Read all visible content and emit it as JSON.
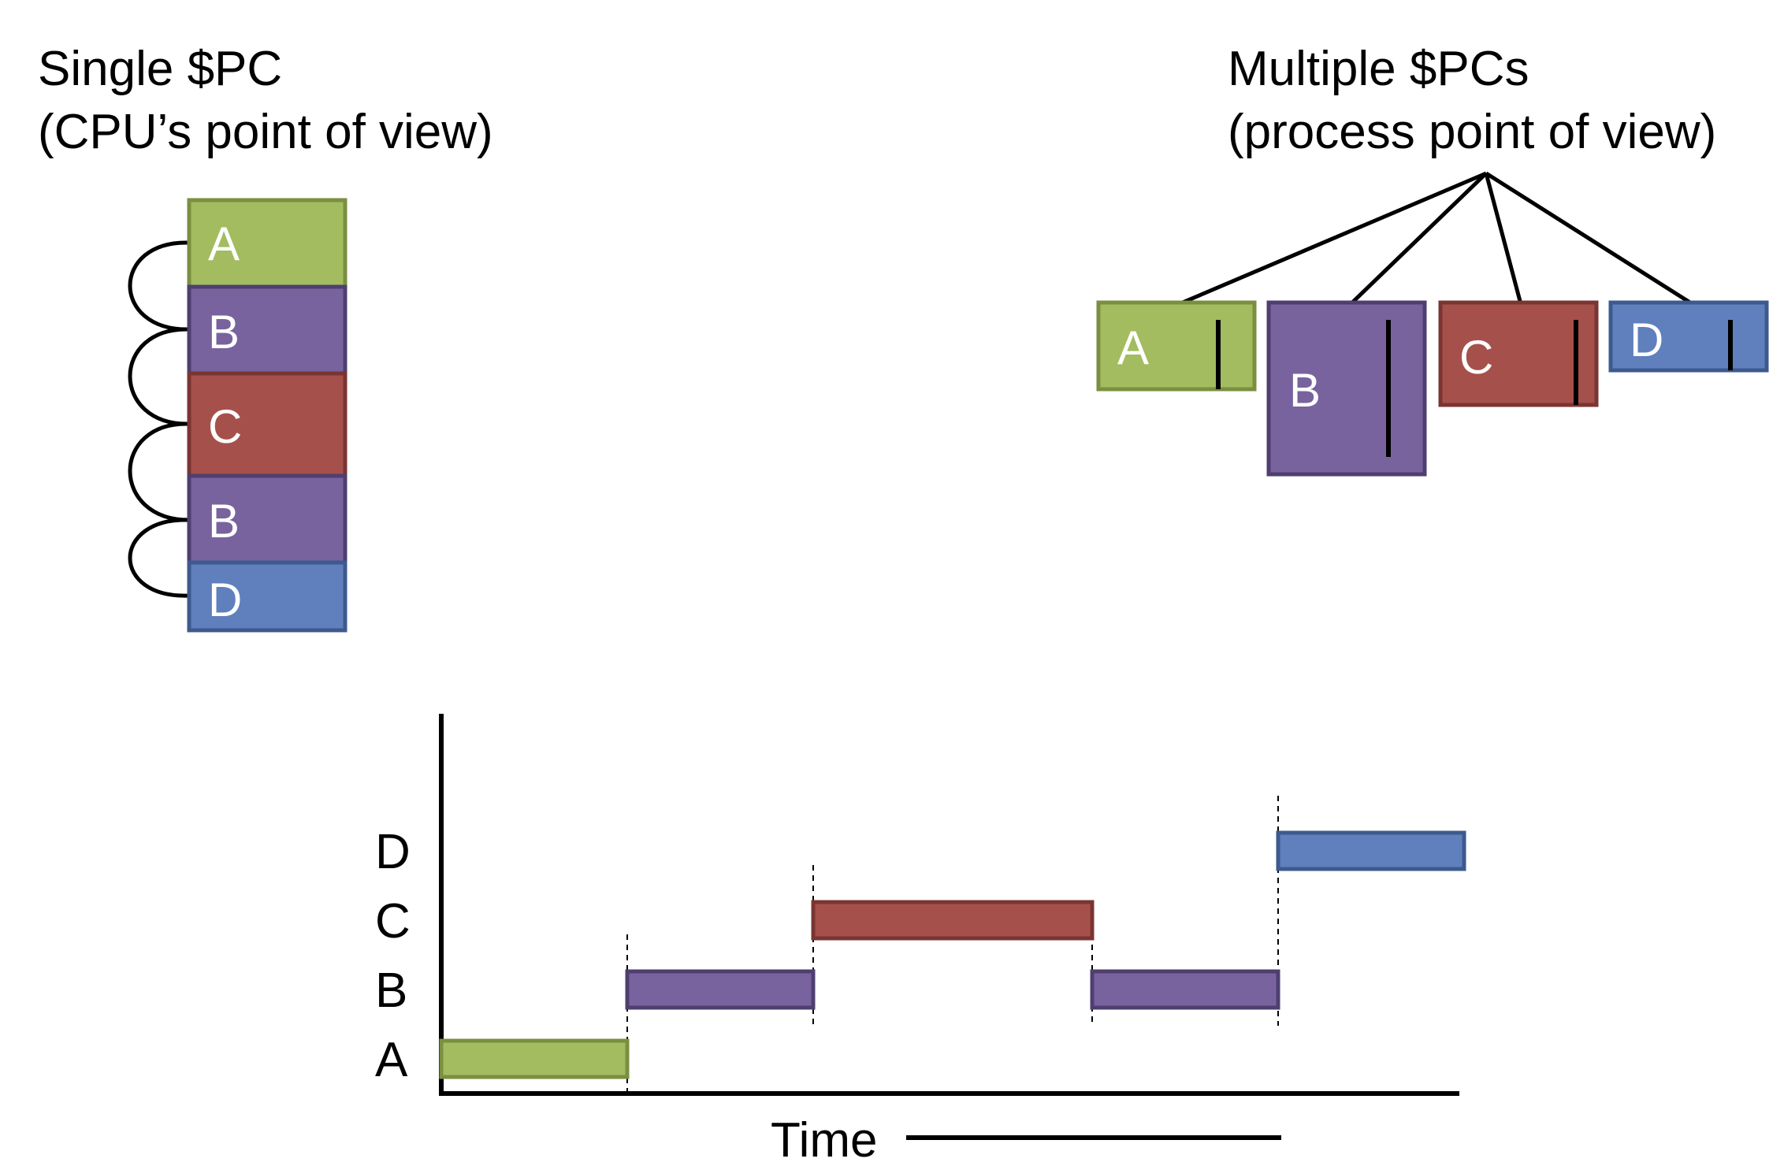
{
  "left_title": {
    "line1": "Single $PC",
    "line2": "(CPU’s point of view)"
  },
  "right_title": {
    "line1": "Multiple $PCs",
    "line2": "(process point of view)"
  },
  "colors": {
    "A": "#a3bc60",
    "B": "#78639e",
    "C": "#a6504c",
    "D": "#5f80bc",
    "A_stroke": "#7a8f3f",
    "B_stroke": "#4e3f70",
    "C_stroke": "#7a3532",
    "D_stroke": "#3d5a8e"
  },
  "cpu_stack": [
    "A",
    "B",
    "C",
    "B",
    "D"
  ],
  "process_boxes": [
    "A",
    "B",
    "C",
    "D"
  ],
  "timeline": {
    "rows": [
      "D",
      "C",
      "B",
      "A"
    ],
    "segments": [
      {
        "process": "A",
        "start": 0,
        "end": 1
      },
      {
        "process": "B",
        "start": 1,
        "end": 2
      },
      {
        "process": "C",
        "start": 2,
        "end": 3.5
      },
      {
        "process": "B",
        "start": 3.5,
        "end": 4.5
      },
      {
        "process": "D",
        "start": 4.5,
        "end": 5.5
      }
    ],
    "x_label": "Time"
  }
}
